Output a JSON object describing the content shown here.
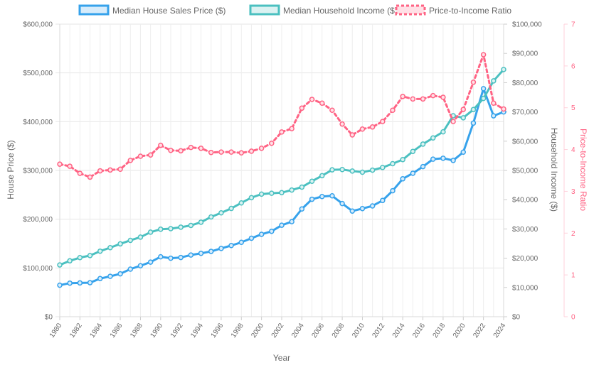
{
  "chart_data": {
    "type": "line",
    "title": "",
    "xlabel": "Year",
    "x": [
      1980,
      1981,
      1982,
      1983,
      1984,
      1985,
      1986,
      1987,
      1988,
      1989,
      1990,
      1991,
      1992,
      1993,
      1994,
      1995,
      1996,
      1997,
      1998,
      1999,
      2000,
      2001,
      2002,
      2003,
      2004,
      2005,
      2006,
      2007,
      2008,
      2009,
      2010,
      2011,
      2012,
      2013,
      2014,
      2015,
      2016,
      2017,
      2018,
      2019,
      2020,
      2021,
      2022,
      2023,
      2024
    ],
    "x_tick_labels": [
      "1980",
      "1982",
      "1984",
      "1986",
      "1988",
      "1990",
      "1992",
      "1994",
      "1996",
      "1998",
      "2000",
      "2002",
      "2004",
      "2006",
      "2008",
      "2010",
      "2012",
      "2014",
      "2016",
      "2018",
      "2020",
      "2022",
      "2024"
    ],
    "axes": {
      "y_left": {
        "label": "House Price ($)",
        "range": [
          0,
          600000
        ],
        "ticks": [
          "$0",
          "$100,000",
          "$200,000",
          "$300,000",
          "$400,000",
          "$500,000",
          "$600,000"
        ]
      },
      "y_right1": {
        "label": "Household Income ($)",
        "range": [
          0,
          100000
        ],
        "ticks": [
          "$0",
          "$10,000",
          "$20,000",
          "$30,000",
          "$40,000",
          "$50,000",
          "$60,000",
          "$70,000",
          "$80,000",
          "$90,000",
          "$100,000"
        ]
      },
      "y_right2": {
        "label": "Price-to-Income Ratio",
        "range": [
          0,
          7
        ],
        "ticks": [
          "0",
          "1",
          "2",
          "3",
          "4",
          "5",
          "6",
          "7"
        ]
      }
    },
    "grid": true,
    "legend_position": "top",
    "series": [
      {
        "name": "Median House Sales Price ($)",
        "axis": "y_left",
        "color": "#36a2eb",
        "fill": "#d7ecfb",
        "style": "solid",
        "values": [
          64600,
          68900,
          69300,
          69800,
          78200,
          82800,
          88000,
          97600,
          104500,
          112000,
          122900,
          120000,
          121500,
          126500,
          130000,
          133900,
          140000,
          146000,
          152500,
          161000,
          169000,
          175200,
          187600,
          195000,
          221000,
          240900,
          246500,
          247900,
          232100,
          216700,
          221800,
          227200,
          238400,
          258400,
          282800,
          294200,
          307800,
          323100,
          325000,
          320500,
          337500,
          397100,
          467700,
          412000,
          420000
        ]
      },
      {
        "name": "Median Household Income ($)",
        "axis": "y_right1",
        "color": "#4bc0c0",
        "fill": "#dbf2f2",
        "style": "solid",
        "values": [
          17700,
          19100,
          20200,
          20900,
          22400,
          23600,
          24900,
          26100,
          27200,
          28900,
          29900,
          30100,
          30600,
          31200,
          32300,
          34100,
          35500,
          37000,
          38900,
          40700,
          41900,
          42200,
          42400,
          43300,
          44300,
          46300,
          48200,
          50200,
          50300,
          49800,
          49400,
          50100,
          51000,
          52300,
          53700,
          56500,
          59000,
          61100,
          63200,
          68700,
          68000,
          70800,
          74600,
          80600,
          84500
        ]
      },
      {
        "name": "Price-to-Income Ratio",
        "axis": "y_right2",
        "color": "#ff6384",
        "fill": "#ffe0e6",
        "style": "dashed",
        "values": [
          3.65,
          3.6,
          3.43,
          3.34,
          3.49,
          3.51,
          3.53,
          3.74,
          3.84,
          3.87,
          4.1,
          3.98,
          3.97,
          4.05,
          4.03,
          3.93,
          3.94,
          3.94,
          3.92,
          3.96,
          4.03,
          4.15,
          4.42,
          4.5,
          4.99,
          5.2,
          5.11,
          4.94,
          4.61,
          4.35,
          4.49,
          4.54,
          4.67,
          4.94,
          5.27,
          5.21,
          5.21,
          5.29,
          5.25,
          4.67,
          4.96,
          5.61,
          6.27,
          5.11,
          4.97
        ]
      }
    ]
  }
}
